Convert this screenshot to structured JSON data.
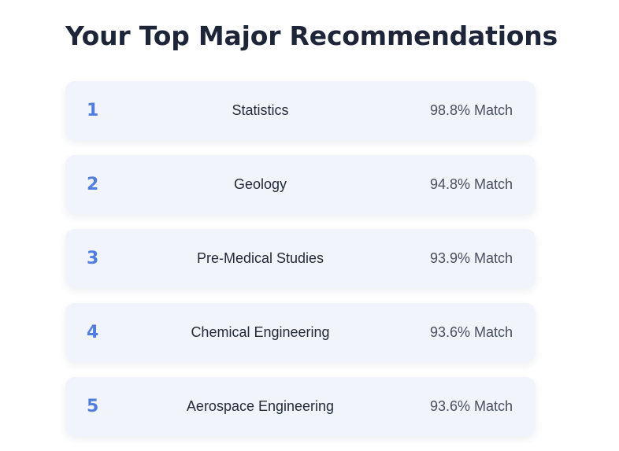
{
  "header": {
    "title": "Your Top Major Recommendations"
  },
  "recommendations": [
    {
      "rank": "1",
      "major": "Statistics",
      "match": "98.8% Match"
    },
    {
      "rank": "2",
      "major": "Geology",
      "match": "94.8% Match"
    },
    {
      "rank": "3",
      "major": "Pre-Medical Studies",
      "match": "93.9% Match"
    },
    {
      "rank": "4",
      "major": "Chemical Engineering",
      "match": "93.6% Match"
    },
    {
      "rank": "5",
      "major": "Aerospace Engineering",
      "match": "93.6% Match"
    }
  ],
  "colors": {
    "rank_accent": "#4f7ee0",
    "card_bg": "#f1f4fa",
    "title": "#1e2538"
  }
}
